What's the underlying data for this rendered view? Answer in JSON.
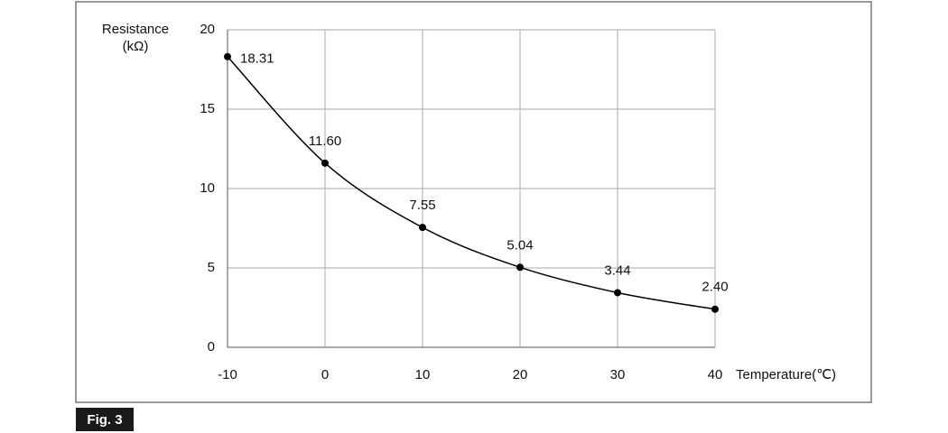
{
  "chart_data": {
    "type": "line",
    "figure_label": "Fig. 3",
    "y_label": "Resistance",
    "y_unit": "(kΩ)",
    "x_label": "Temperature(℃)",
    "x": [
      -10,
      0,
      10,
      20,
      30,
      40
    ],
    "series": [
      {
        "color": "#000000",
        "values": [
          18.31,
          11.6,
          7.55,
          5.04,
          3.44,
          2.4
        ],
        "value_labels": [
          "18.31",
          "11.60",
          "7.55",
          "5.04",
          "3.44",
          "2.40"
        ]
      }
    ],
    "xlim": [
      -10,
      40
    ],
    "xticks": [
      -10,
      0,
      10,
      20,
      30,
      40
    ],
    "ylim": [
      0,
      20
    ],
    "yticks": [
      0,
      5,
      10,
      15,
      20
    ],
    "grid": true
  }
}
